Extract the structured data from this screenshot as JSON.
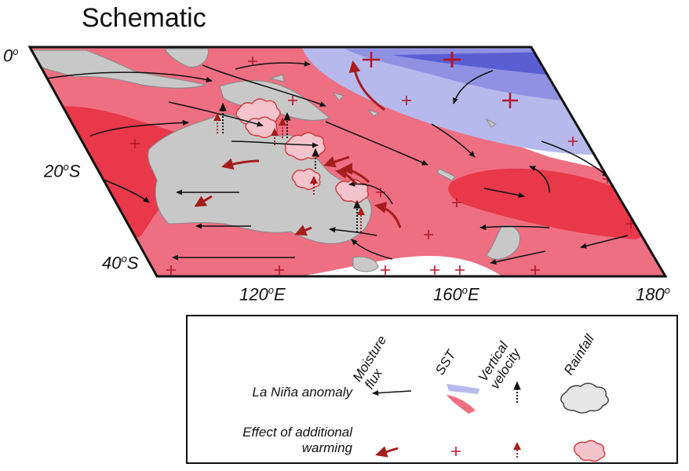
{
  "title": "Schematic",
  "latitude_labels": {
    "lat0": "0",
    "lat20": "20",
    "lat20_suffix": "S",
    "lat40": "40",
    "lat40_suffix": "S"
  },
  "longitude_labels": {
    "lon120": "120",
    "lon120_suffix": "E",
    "lon160": "160",
    "lon160_suffix": "E",
    "lon180": "180"
  },
  "degree_symbol": "o",
  "legend": {
    "columns": {
      "moisture_flux": "Moisture\nflux",
      "sst": "SST",
      "vertical_velocity": "Vertical\nvelocity",
      "rainfall": "Rainfall"
    },
    "rows": {
      "la_nina": "La Niña anomaly",
      "additional_warming": "Effect of additional\nwarming"
    }
  },
  "colors": {
    "warm_sst": "#ee6f82",
    "warm_sst_strong": "#e8384a",
    "cool_sst_light": "#b7b9ec",
    "cool_sst_strong": "#6d70d8",
    "land": "#c8c8c8",
    "la_nina_arrow": "#111111",
    "warming_arrow": "#a51d1d",
    "plus_marker": "#b3172c",
    "cloud_fill": "#f4c3cc",
    "cloud_outline": "#cf3a3a"
  },
  "icons": [
    "black-arrow-icon",
    "red-arrow-icon",
    "plus-icon",
    "dashed-up-arrow-icon",
    "cloud-icon"
  ]
}
